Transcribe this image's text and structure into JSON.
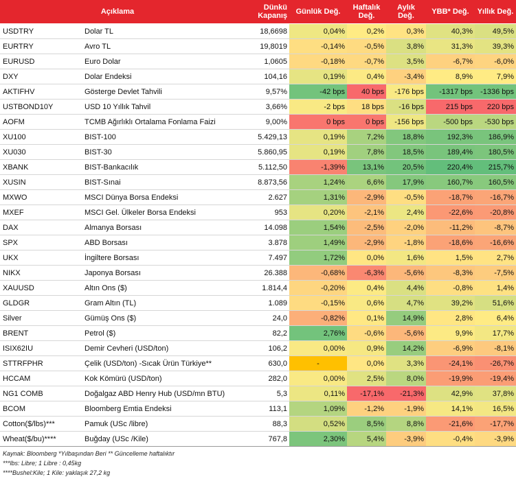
{
  "header": {
    "description": "Açıklama",
    "close_line1": "Dünkü",
    "close_line2": "Kapanış",
    "daily": "Günlük Değ.",
    "weekly_line1": "Haftalık",
    "weekly_line2": "Değ.",
    "monthly_line1": "Aylık",
    "monthly_line2": "Değ.",
    "ytd": "YBB* Değ.",
    "yearly": "Yıllık Değ."
  },
  "colors": {
    "header_bg": "#e4262d",
    "green_strong": "#63be7b",
    "red_strong": "#f8696b",
    "yellow": "#ffeb84",
    "highlight_orange": "#ffc000"
  },
  "rows": [
    {
      "code": "USDTRY",
      "desc": "Dolar TL",
      "close": "18,6698",
      "daily": "0,04%",
      "weekly": "0,2%",
      "monthly": "0,3%",
      "ytd": "40,3%",
      "yearly": "49,5%",
      "shade": [
        0.55,
        0.5,
        0.47,
        0.6,
        0.62
      ]
    },
    {
      "code": "EURTRY",
      "desc": "Avro TL",
      "close": "19,8019",
      "daily": "-0,14%",
      "weekly": "-0,5%",
      "monthly": "3,8%",
      "ytd": "31,3%",
      "yearly": "39,3%",
      "shade": [
        0.45,
        0.44,
        0.62,
        0.57,
        0.59
      ]
    },
    {
      "code": "EURUSD",
      "desc": "Euro Dolar",
      "close": "1,0605",
      "daily": "-0,18%",
      "weekly": "-0,7%",
      "monthly": "3,5%",
      "ytd": "-6,7%",
      "yearly": "-6,0%",
      "shade": [
        0.43,
        0.43,
        0.61,
        0.4,
        0.41
      ]
    },
    {
      "code": "DXY",
      "desc": "Dolar Endeksi",
      "close": "104,16",
      "daily": "0,19%",
      "weekly": "0,4%",
      "monthly": "-3,4%",
      "ytd": "8,9%",
      "yearly": "7,9%",
      "shade": [
        0.58,
        0.51,
        0.4,
        0.5,
        0.5
      ]
    },
    {
      "code": "AKTIFHV",
      "desc": "Gösterge Devlet Tahvili",
      "close": "9,57%",
      "daily": "-42 bps",
      "weekly": "40 bps",
      "monthly": "-176 bps",
      "ytd": "-1317 bps",
      "yearly": "-1336 bps",
      "shade": [
        0.95,
        0.0,
        0.52,
        0.95,
        0.95
      ]
    },
    {
      "code": "USTBOND10Y",
      "desc": "USD 10 Yıllık Tahvil",
      "close": "3,66%",
      "daily": "-2 bps",
      "weekly": "18 bps",
      "monthly": "-16 bps",
      "ytd": "215 bps",
      "yearly": "220 bps",
      "shade": [
        0.52,
        0.45,
        0.62,
        0.0,
        0.0
      ]
    },
    {
      "code": "AOFM",
      "desc": "TCMB Ağırlıklı Ortalama Fonlama Faizi",
      "close": "9,00%",
      "daily": "0 bps",
      "weekly": "0 bps",
      "monthly": "-156 bps",
      "ytd": "-500 bps",
      "yearly": "-530 bps",
      "shade": [
        0.05,
        0.05,
        0.55,
        0.72,
        0.72
      ]
    },
    {
      "code": "XU100",
      "desc": "BIST-100",
      "close": "5.429,13",
      "daily": "0,19%",
      "weekly": "7,2%",
      "monthly": "18,8%",
      "ytd": "192,3%",
      "yearly": "186,9%",
      "shade": [
        0.58,
        0.78,
        0.9,
        0.93,
        0.93
      ]
    },
    {
      "code": "XU030",
      "desc": "BIST-30",
      "close": "5.860,95",
      "daily": "0,19%",
      "weekly": "7,8%",
      "monthly": "18,5%",
      "ytd": "189,4%",
      "yearly": "180,5%",
      "shade": [
        0.58,
        0.8,
        0.9,
        0.93,
        0.92
      ]
    },
    {
      "code": "XBANK",
      "desc": "BIST-Bankacılık",
      "close": "5.112,50",
      "daily": "-1,39%",
      "weekly": "13,1%",
      "monthly": "20,5%",
      "ytd": "220,4%",
      "yearly": "215,7%",
      "shade": [
        0.1,
        0.93,
        0.95,
        1.0,
        1.0
      ]
    },
    {
      "code": "XUSIN",
      "desc": "BIST-Sınai",
      "close": "8.873,56",
      "daily": "1,24%",
      "weekly": "6,6%",
      "monthly": "17,9%",
      "ytd": "160,7%",
      "yearly": "160,5%",
      "shade": [
        0.78,
        0.77,
        0.89,
        0.88,
        0.88
      ]
    },
    {
      "code": "MXWO",
      "desc": "MSCI Dünya Borsa Endeksi",
      "close": "2.627",
      "daily": "1,31%",
      "weekly": "-2,9%",
      "monthly": "-0,5%",
      "ytd": "-18,7%",
      "yearly": "-16,7%",
      "shade": [
        0.79,
        0.3,
        0.45,
        0.22,
        0.23
      ]
    },
    {
      "code": "MXEF",
      "desc": "MSCI Gel. Ülkeler Borsa Endeksi",
      "close": "953",
      "daily": "0,20%",
      "weekly": "-2,1%",
      "monthly": "2,4%",
      "ytd": "-22,6%",
      "yearly": "-20,8%",
      "shade": [
        0.58,
        0.35,
        0.56,
        0.18,
        0.19
      ]
    },
    {
      "code": "DAX",
      "desc": "Almanya Borsası",
      "close": "14.098",
      "daily": "1,54%",
      "weekly": "-2,5%",
      "monthly": "-2,0%",
      "ytd": "-11,2%",
      "yearly": "-8,7%",
      "shade": [
        0.82,
        0.32,
        0.4,
        0.32,
        0.35
      ]
    },
    {
      "code": "SPX",
      "desc": "ABD Borsası",
      "close": "3.878",
      "daily": "1,49%",
      "weekly": "-2,9%",
      "monthly": "-1,8%",
      "ytd": "-18,6%",
      "yearly": "-16,6%",
      "shade": [
        0.81,
        0.3,
        0.41,
        0.22,
        0.23
      ]
    },
    {
      "code": "UKX",
      "desc": "İngiltere Borsası",
      "close": "7.497",
      "daily": "1,72%",
      "weekly": "0,0%",
      "monthly": "1,6%",
      "ytd": "1,5%",
      "yearly": "2,7%",
      "shade": [
        0.85,
        0.48,
        0.54,
        0.47,
        0.47
      ]
    },
    {
      "code": "NIKX",
      "desc": "Japonya Borsası",
      "close": "26.388",
      "daily": "-0,68%",
      "weekly": "-6,3%",
      "monthly": "-5,6%",
      "ytd": "-8,3%",
      "yearly": "-7,5%",
      "shade": [
        0.3,
        0.12,
        0.3,
        0.36,
        0.38
      ]
    },
    {
      "code": "XAUUSD",
      "desc": "Altın Ons ($)",
      "close": "1.814,4",
      "daily": "-0,20%",
      "weekly": "0,4%",
      "monthly": "4,4%",
      "ytd": "-0,8%",
      "yearly": "1,4%",
      "shade": [
        0.42,
        0.51,
        0.62,
        0.45,
        0.46
      ]
    },
    {
      "code": "GLDGR",
      "desc": "Gram Altın (TL)",
      "close": "1.089",
      "daily": "-0,15%",
      "weekly": "0,6%",
      "monthly": "4,7%",
      "ytd": "39,2%",
      "yearly": "51,6%",
      "shade": [
        0.44,
        0.52,
        0.63,
        0.6,
        0.63
      ]
    },
    {
      "code": "Silver",
      "desc": "Gümüş Ons ($)",
      "close": "24,0",
      "daily": "-0,82%",
      "weekly": "0,1%",
      "monthly": "14,9%",
      "ytd": "2,8%",
      "yearly": "6,4%",
      "shade": [
        0.27,
        0.49,
        0.84,
        0.48,
        0.5
      ]
    },
    {
      "code": "BRENT",
      "desc": "Petrol ($)",
      "close": "82,2",
      "daily": "2,76%",
      "weekly": "-0,6%",
      "monthly": "-5,6%",
      "ytd": "9,9%",
      "yearly": "17,7%",
      "shade": [
        0.95,
        0.44,
        0.3,
        0.51,
        0.54
      ]
    },
    {
      "code": "ISIX62IU",
      "desc": "Demir Cevheri (USD/ton)",
      "close": "106,2",
      "daily": "0,00%",
      "weekly": "0,9%",
      "monthly": "14,2%",
      "ytd": "-6,9%",
      "yearly": "-8,1%",
      "shade": [
        0.52,
        0.53,
        0.83,
        0.39,
        0.37
      ]
    },
    {
      "code": "STTRFPHR",
      "desc": "Çelik (USD/ton) -Sıcak Ürün Türkiye**",
      "close": "630,0",
      "daily": "-",
      "weekly": "0,0%",
      "monthly": "3,3%",
      "ytd": "-24,1%",
      "yearly": "-26,7%",
      "shade": [
        -1,
        0.48,
        0.6,
        0.17,
        0.15
      ]
    },
    {
      "code": "HCCAM",
      "desc": "Kok Kömürü (USD/ton)",
      "close": "282,0",
      "daily": "0,00%",
      "weekly": "2,5%",
      "monthly": "8,0%",
      "ytd": "-19,9%",
      "yearly": "-19,4%",
      "shade": [
        0.52,
        0.6,
        0.72,
        0.2,
        0.2
      ]
    },
    {
      "code": "NG1 COMB",
      "desc": "Doğalgaz ABD Henry Hub (USD/mn BTU)",
      "close": "5,3",
      "daily": "0,11%",
      "weekly": "-17,1%",
      "monthly": "-21,3%",
      "ytd": "42,9%",
      "yearly": "37,8%",
      "shade": [
        0.56,
        0.0,
        0.0,
        0.61,
        0.6
      ]
    },
    {
      "code": "BCOM",
      "desc": "Bloomberg Emtia Endeksi",
      "close": "113,1",
      "daily": "1,09%",
      "weekly": "-1,2%",
      "monthly": "-1,9%",
      "ytd": "14,1%",
      "yearly": "16,5%",
      "shade": [
        0.74,
        0.4,
        0.4,
        0.53,
        0.54
      ]
    },
    {
      "code": "Cotton($/lbs)***",
      "desc": "Pamuk (USc /libre)",
      "close": "88,3",
      "daily": "0,52%",
      "weekly": "8,5%",
      "monthly": "8,8%",
      "ytd": "-21,6%",
      "yearly": "-17,7%",
      "shade": [
        0.64,
        0.82,
        0.74,
        0.19,
        0.22
      ]
    },
    {
      "code": "Wheat($/bu)****",
      "desc": "Buğday (USc /Kile)",
      "close": "767,8",
      "daily": "2,30%",
      "weekly": "5,4%",
      "monthly": "-3,9%",
      "ytd": "-0,4%",
      "yearly": "-3,9%",
      "shade": [
        0.92,
        0.73,
        0.38,
        0.45,
        0.43
      ]
    }
  ],
  "notes": [
    "Kaynak: Bloomberg *Yılbaşından Beri  ** Güncelleme haftalıktır",
    "***lbs: Libre; 1 Libre : 0,45kg",
    "****Bushel:Kile; 1 Kile: yaklaşık 27,2 kg"
  ]
}
